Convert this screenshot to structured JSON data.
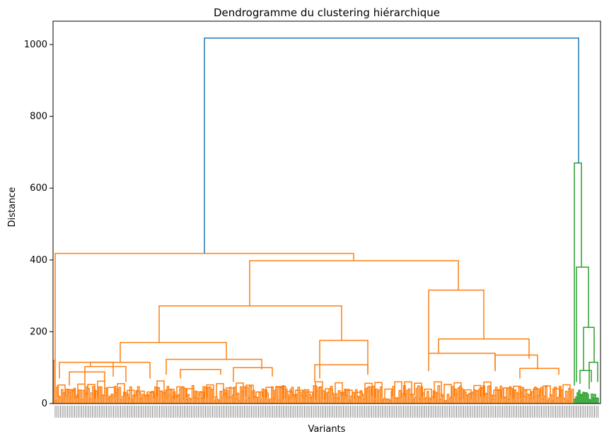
{
  "chart_data": {
    "type": "dendrogram",
    "title": "Dendrogramme du clustering hiérarchique",
    "xlabel": "Variants",
    "ylabel": "Distance",
    "ylim": [
      0,
      1065
    ],
    "yticks": [
      0,
      200,
      400,
      600,
      800,
      1000
    ],
    "grid": false,
    "colors": {
      "root": "#1f77b4",
      "cluster_1": "#ff7f0e",
      "cluster_2": "#2ca02c",
      "axis": "#000000"
    },
    "clusters": [
      {
        "name": "cluster_1",
        "color": "#ff7f0e",
        "merge_height": 418,
        "major_merges": [
          {
            "height": 418,
            "note": "left singleton + main group"
          },
          {
            "height": 398,
            "note": "main group split"
          },
          {
            "height": 272,
            "note": "left-center subgroup"
          },
          {
            "height": 316,
            "note": "right subgroup"
          },
          {
            "height": 170,
            "note": "sub-branch"
          },
          {
            "height": 176,
            "note": "sub-branch"
          },
          {
            "height": 180,
            "note": "sub-branch"
          },
          {
            "height": 140,
            "note": "sub-branch"
          },
          {
            "height": 123,
            "note": "sub-branch"
          },
          {
            "height": 115,
            "note": "sub-branch"
          },
          {
            "height": 108,
            "note": "sub-branch"
          },
          {
            "height": 135,
            "note": "sub-branch"
          }
        ]
      },
      {
        "name": "cluster_2",
        "color": "#2ca02c",
        "merge_height": 670,
        "major_merges": [
          {
            "height": 670
          },
          {
            "height": 380
          },
          {
            "height": 212
          },
          {
            "height": 115
          },
          {
            "height": 92
          }
        ]
      }
    ],
    "root_merge_height": 1018
  }
}
